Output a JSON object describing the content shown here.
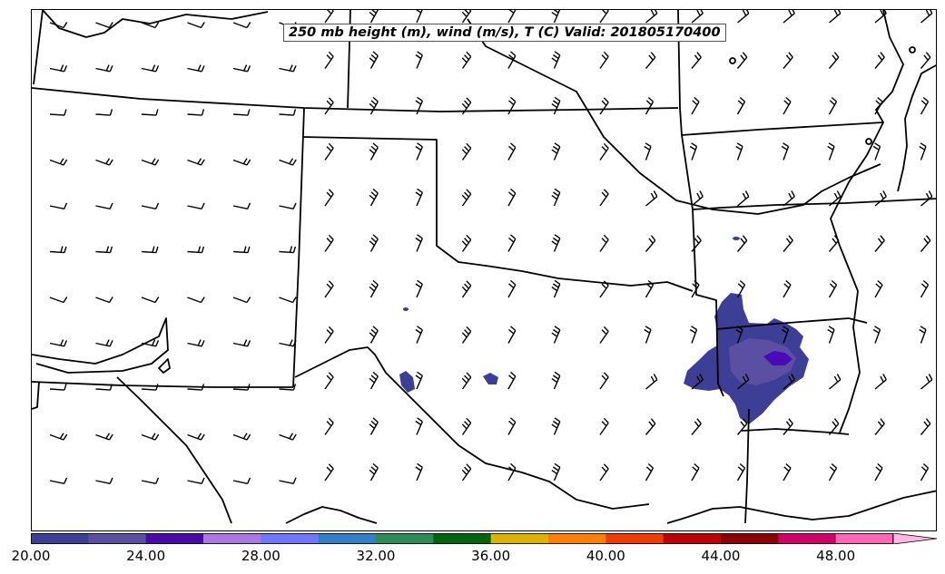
{
  "title": "250 mb height (m), wind (m/s), T (C) Valid: 201805170400",
  "colors": {
    "blob_outer": "#3c3f95",
    "blob_mid": "#5a4fa3",
    "blob_inner": "#4a0ab8",
    "boundary": "#000000"
  },
  "colorbar": {
    "bins": [
      {
        "from": 20,
        "to": 22,
        "color": "#3b3f95"
      },
      {
        "from": 22,
        "to": 24,
        "color": "#5b4fa2"
      },
      {
        "from": 24,
        "to": 26,
        "color": "#4a0aa8"
      },
      {
        "from": 26,
        "to": 28,
        "color": "#a978e4"
      },
      {
        "from": 28,
        "to": 30,
        "color": "#6f77ff"
      },
      {
        "from": 30,
        "to": 32,
        "color": "#3280c8"
      },
      {
        "from": 32,
        "to": 34,
        "color": "#2e8b57"
      },
      {
        "from": 34,
        "to": 36,
        "color": "#00640a"
      },
      {
        "from": 36,
        "to": 38,
        "color": "#ddb300"
      },
      {
        "from": 38,
        "to": 40,
        "color": "#ff8000"
      },
      {
        "from": 40,
        "to": 42,
        "color": "#f03c00"
      },
      {
        "from": 42,
        "to": 44,
        "color": "#c00000"
      },
      {
        "from": 44,
        "to": 46,
        "color": "#8b0000"
      },
      {
        "from": 46,
        "to": 48,
        "color": "#d00068"
      },
      {
        "from": 48,
        "to": 50,
        "color": "#ff66b4"
      }
    ],
    "extend_color": "#ffb6e0",
    "tick_labels": [
      "20.00",
      "24.00",
      "28.00",
      "32.00",
      "36.00",
      "40.00",
      "44.00",
      "48.00"
    ]
  }
}
